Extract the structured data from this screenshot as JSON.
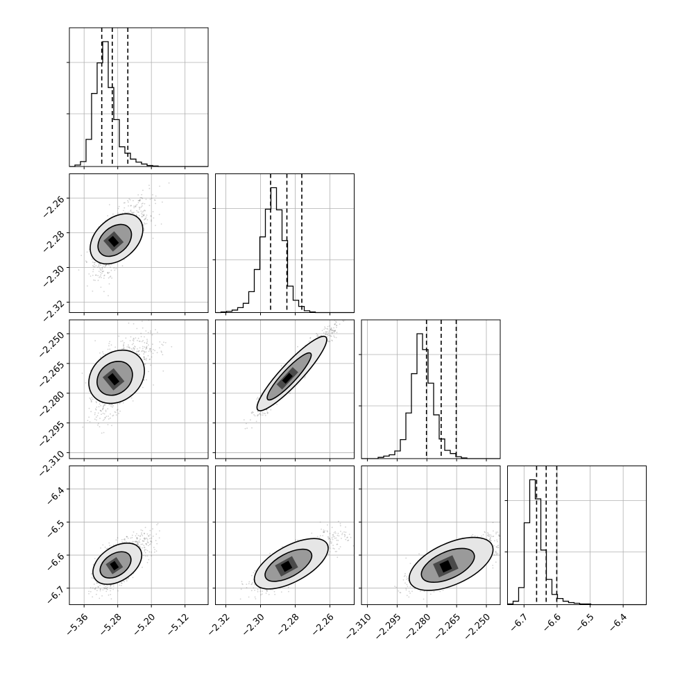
{
  "chart_data": {
    "type": "corner",
    "parameters": [
      {
        "ticks": [
          -5.36,
          -5.28,
          -5.2,
          -5.12
        ],
        "tick_labels": [
          "−5.36",
          "−5.28",
          "−5.20",
          "−5.12"
        ],
        "range": [
          -5.395,
          -5.065
        ]
      },
      {
        "ticks": [
          -2.32,
          -2.3,
          -2.28,
          -2.26
        ],
        "tick_labels": [
          "−2.32",
          "−2.30",
          "−2.28",
          "−2.26"
        ],
        "range": [
          -2.326,
          -2.246
        ]
      },
      {
        "ticks": [
          -2.31,
          -2.295,
          -2.28,
          -2.265,
          -2.25
        ],
        "tick_labels": [
          "−2.310",
          "−2.295",
          "−2.280",
          "−2.265",
          "−2.250"
        ],
        "range": [
          -2.313,
          -2.243
        ]
      },
      {
        "ticks": [
          -6.7,
          -6.6,
          -6.5,
          -6.4
        ],
        "tick_labels": [
          "−6.7",
          "−6.6",
          "−6.5",
          "−6.4"
        ],
        "range": [
          -6.75,
          -6.33
        ]
      }
    ],
    "marginals": [
      {
        "param": 0,
        "quantiles": [
          -5.318,
          -5.293,
          -5.256
        ],
        "bin_edges_first": -5.395,
        "bin_width": 0.0132,
        "counts": [
          0,
          3,
          10,
          55,
          148,
          210,
          253,
          160,
          95,
          40,
          27,
          15,
          9,
          5,
          2,
          1,
          0,
          0,
          0,
          0,
          0,
          0,
          0,
          0,
          0
        ]
      },
      {
        "param": 1,
        "quantiles": [
          -2.2942,
          -2.2848,
          -2.2762
        ],
        "bin_edges_first": -2.326,
        "bin_width": 0.0032,
        "counts": [
          0,
          1,
          2,
          4,
          8,
          15,
          34,
          70,
          123,
          168,
          203,
          167,
          117,
          43,
          20,
          10,
          3,
          1,
          0,
          0,
          0,
          0,
          0,
          0,
          0
        ]
      },
      {
        "param": 2,
        "quantiles": [
          -2.2802,
          -2.2728,
          -2.2652
        ],
        "bin_edges_first": -2.313,
        "bin_width": 0.0028,
        "counts": [
          0,
          0,
          0,
          2,
          4,
          6,
          12,
          30,
          72,
          134,
          197,
          172,
          119,
          69,
          31,
          13,
          8,
          3,
          1,
          0,
          0,
          0,
          0,
          0,
          0
        ]
      },
      {
        "param": 3,
        "quantiles": [
          -6.662,
          -6.633,
          -6.601
        ],
        "bin_edges_first": -6.75,
        "bin_width": 0.0168,
        "counts": [
          1,
          5,
          25,
          120,
          183,
          155,
          80,
          37,
          15,
          9,
          5,
          3,
          2,
          1,
          1,
          0,
          0,
          0,
          0,
          0,
          0,
          0,
          0,
          0,
          0
        ]
      }
    ],
    "pairs": [
      {
        "x": 0,
        "y": 1,
        "center": [
          -5.29,
          -2.285
        ],
        "sigma": [
          0.022,
          0.0085
        ],
        "corr": 0.55
      },
      {
        "x": 0,
        "y": 2,
        "center": [
          -5.29,
          -2.273
        ],
        "sigma": [
          0.022,
          0.0085
        ],
        "corr": 0.45
      },
      {
        "x": 1,
        "y": 2,
        "center": [
          -2.2845,
          -2.2725
        ],
        "sigma": [
          0.0085,
          0.0085
        ],
        "corr": 0.94
      },
      {
        "x": 0,
        "y": 3,
        "center": [
          -5.288,
          -6.632
        ],
        "sigma": [
          0.022,
          0.034
        ],
        "corr": 0.55
      },
      {
        "x": 1,
        "y": 3,
        "center": [
          -2.285,
          -6.634
        ],
        "sigma": [
          0.0085,
          0.034
        ],
        "corr": 0.72
      },
      {
        "x": 2,
        "y": 3,
        "center": [
          -2.2705,
          -6.634
        ],
        "sigma": [
          0.0085,
          0.034
        ],
        "corr": 0.68
      }
    ],
    "grid": true,
    "colors": {
      "points": "#5a5a5a",
      "contour": "#000000",
      "density_dark": "#000000",
      "density_light": "#ffffff"
    }
  }
}
